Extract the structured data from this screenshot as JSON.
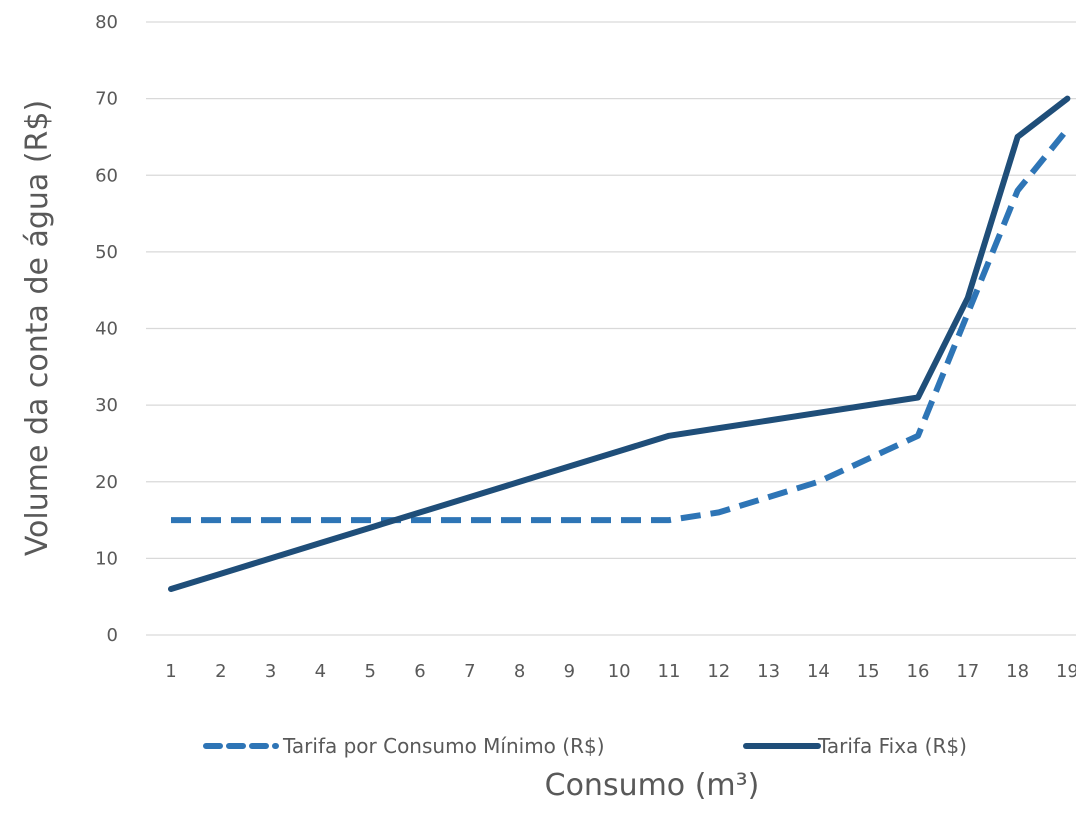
{
  "chart_data": {
    "type": "line",
    "xlabel": "Consumo (m³)",
    "ylabel": "Volume da conta de água (R$)",
    "categories": [
      "1",
      "2",
      "3",
      "4",
      "5",
      "6",
      "7",
      "8",
      "9",
      "10",
      "11",
      "12",
      "13",
      "14",
      "15",
      "16",
      "17",
      "18",
      "19"
    ],
    "ylim": [
      0,
      80
    ],
    "yticks": [
      "0",
      "10",
      "20",
      "30",
      "40",
      "50",
      "60",
      "70",
      "80"
    ],
    "grid": true,
    "legend_position": "bottom",
    "series": [
      {
        "name": "Tarifa por Consumo Mínimo (R$)",
        "color": "#2e75b6",
        "style": "dashed",
        "values": [
          15,
          15,
          15,
          15,
          15,
          15,
          15,
          15,
          15,
          15,
          15,
          16,
          18,
          20,
          23,
          26,
          42,
          58,
          66
        ]
      },
      {
        "name": "Tarifa Fixa (R$)",
        "color": "#1f4e79",
        "style": "solid",
        "values": [
          6,
          8,
          10,
          12,
          14,
          16,
          18,
          20,
          22,
          24,
          26,
          27,
          28,
          29,
          30,
          31,
          44,
          65,
          70
        ]
      }
    ]
  }
}
